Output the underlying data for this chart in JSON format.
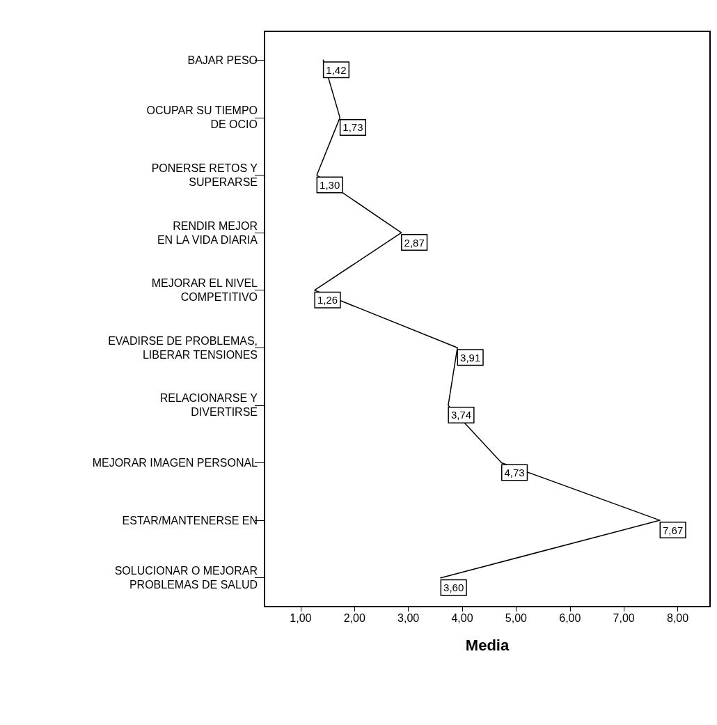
{
  "chart_data": {
    "type": "line",
    "orientation": "horizontal",
    "xlabel": "Media",
    "categories": [
      "BAJAR PESO",
      "OCUPAR SU TIEMPO\nDE OCIO",
      "PONERSE RETOS Y\nSUPERARSE",
      "RENDIR MEJOR\nEN LA VIDA DIARIA",
      "MEJORAR EL NIVEL\nCOMPETITIVO",
      "EVADIRSE DE PROBLEMAS,\nLIBERAR TENSIONES",
      "RELACIONARSE Y\nDIVERTIRSE",
      "MEJORAR IMAGEN PERSONAL",
      "ESTAR/MANTENERSE EN",
      "SOLUCIONAR O MEJORAR\nPROBLEMAS DE SALUD"
    ],
    "values": [
      1.42,
      1.73,
      1.3,
      2.87,
      1.26,
      3.91,
      3.74,
      4.73,
      7.67,
      3.6
    ],
    "value_labels": [
      "1,42",
      "1,73",
      "1,30",
      "2,87",
      "1,26",
      "3,91",
      "3,74",
      "4,73",
      "7,67",
      "3,60"
    ],
    "color": "#000000",
    "xlim": [
      0.33,
      8.6
    ],
    "xticks": [
      {
        "value": 1,
        "label": "1,00"
      },
      {
        "value": 2,
        "label": "2,00"
      },
      {
        "value": 3,
        "label": "3,00"
      },
      {
        "value": 4,
        "label": "4,00"
      },
      {
        "value": 5,
        "label": "5,00"
      },
      {
        "value": 6,
        "label": "6,00"
      },
      {
        "value": 7,
        "label": "7,00"
      },
      {
        "value": 8,
        "label": "8,00"
      }
    ],
    "grid": false,
    "marker": "none",
    "line_style": "solid"
  }
}
